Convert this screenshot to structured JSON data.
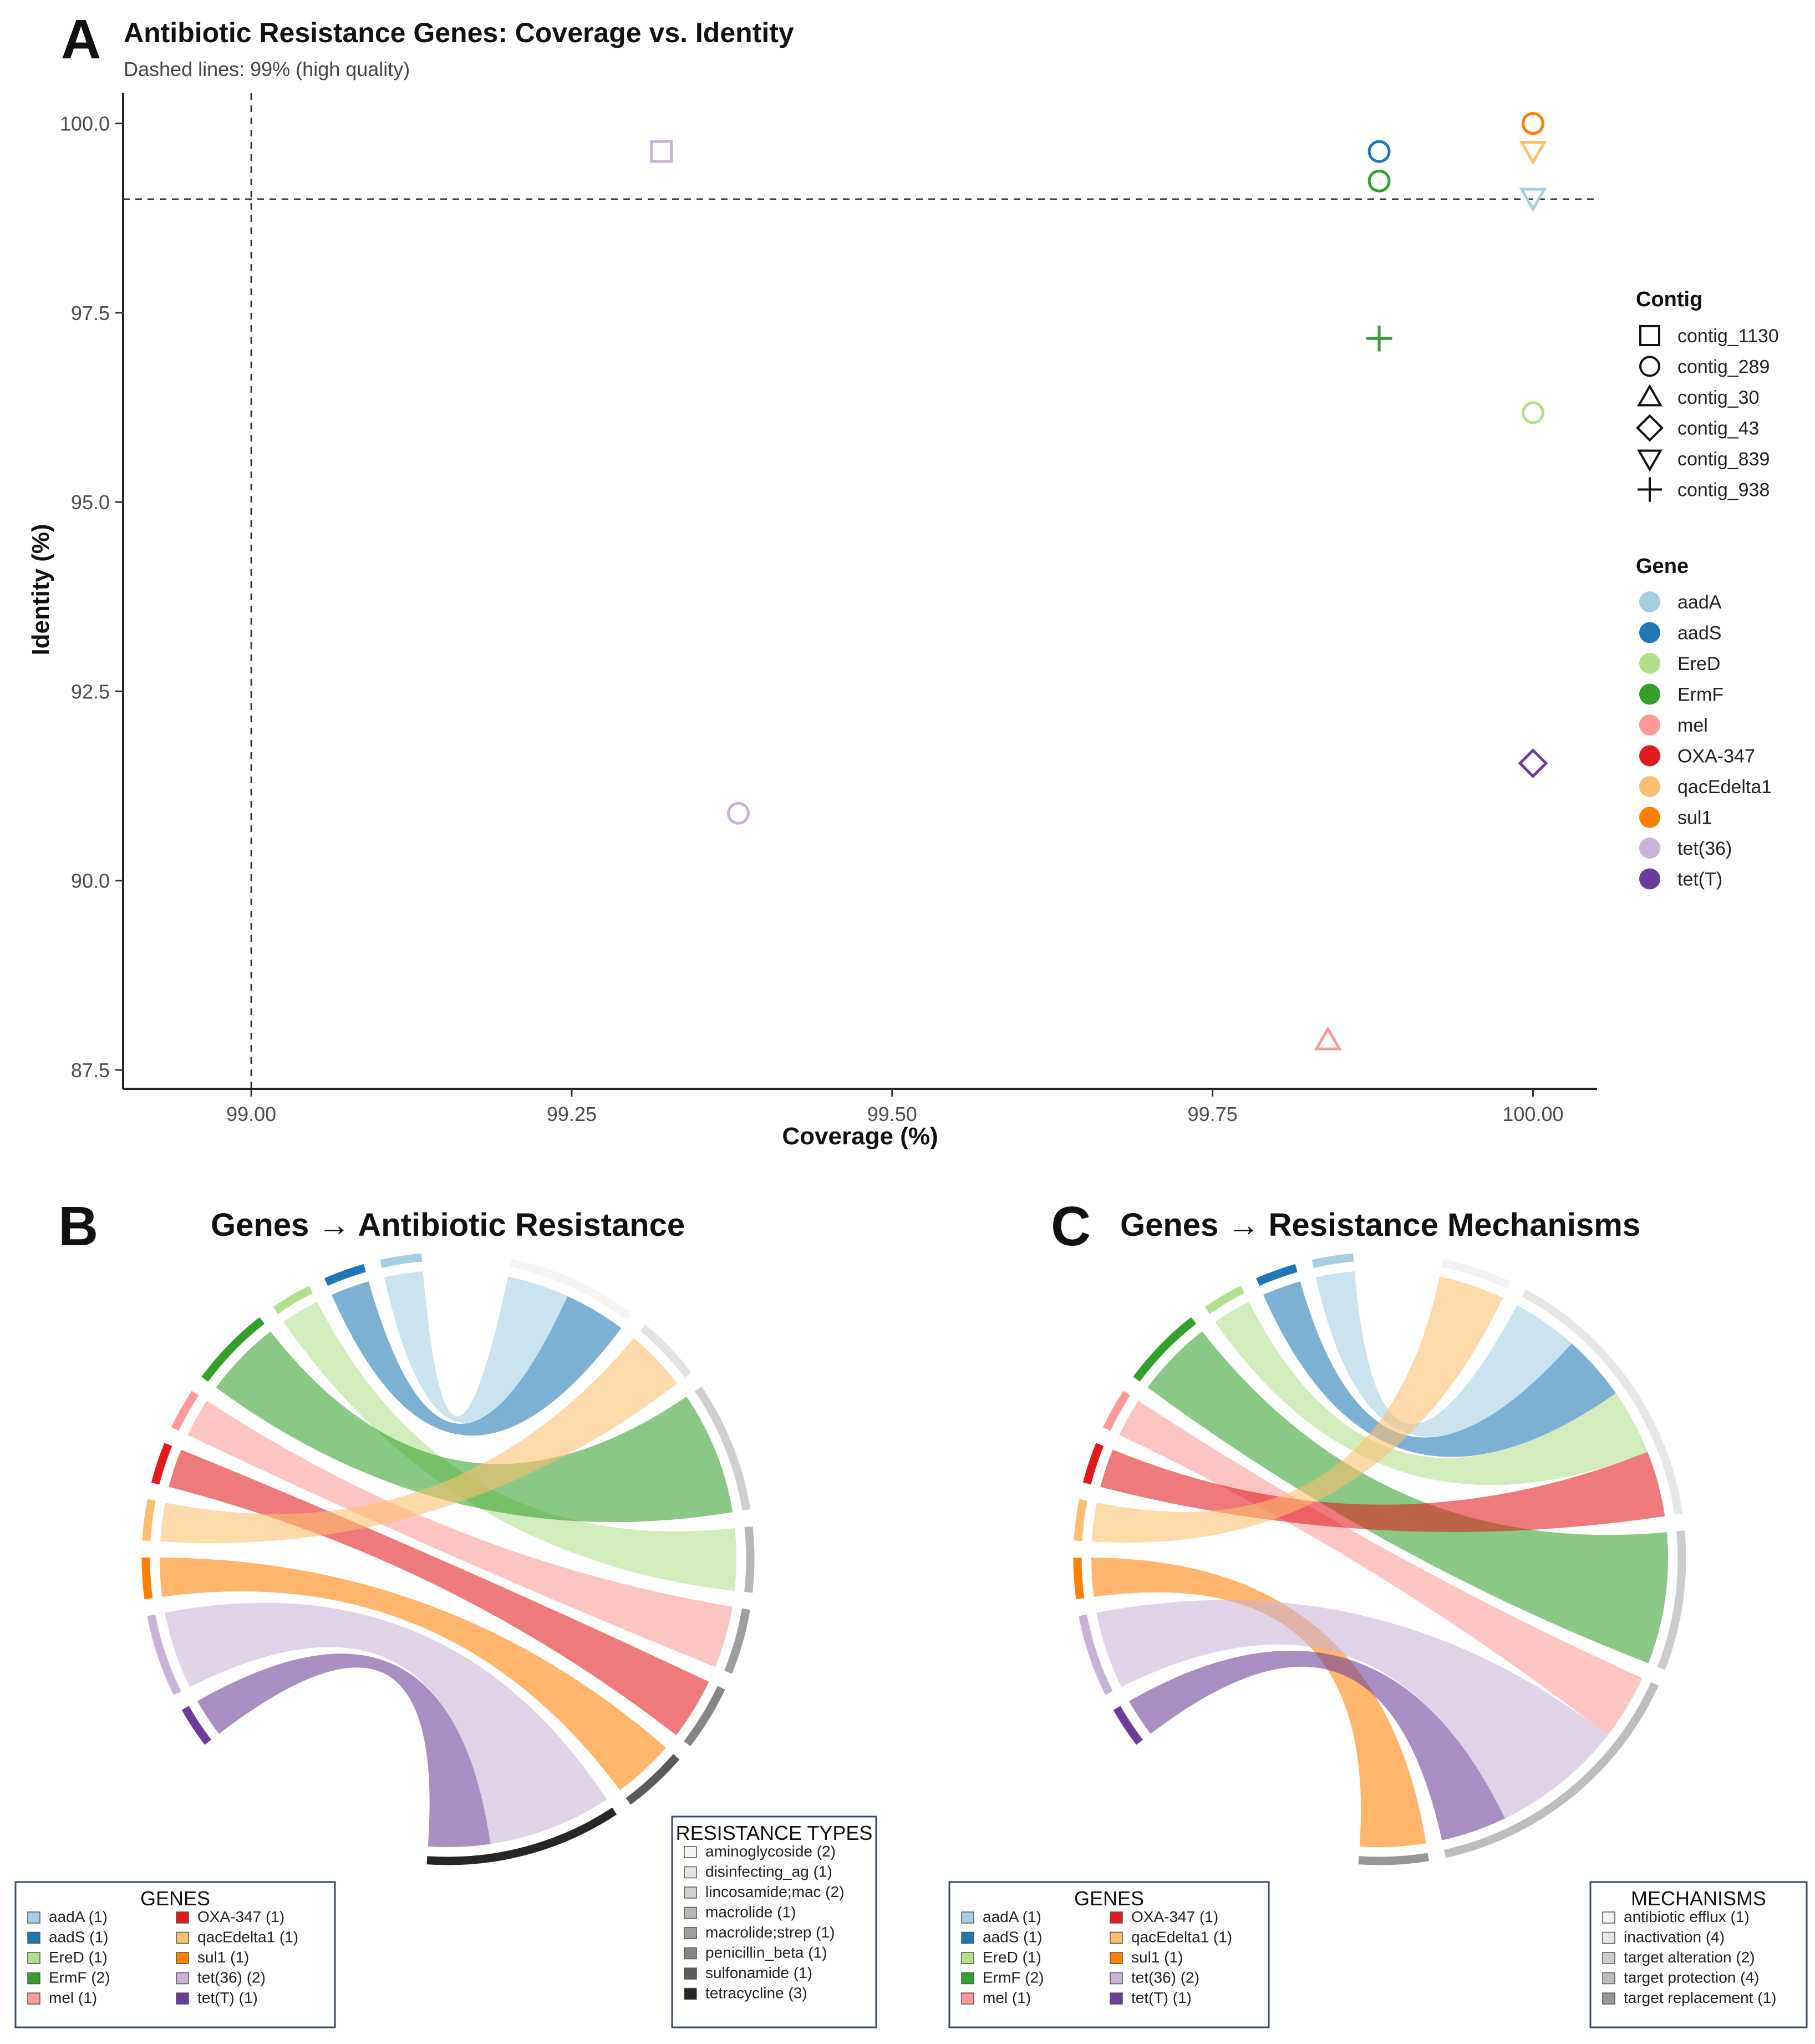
{
  "colors": {
    "aadA": "#a6cee3",
    "aadS": "#1f78b4",
    "EreD": "#b2df8a",
    "ErmF": "#33a02c",
    "mel": "#fb9a99",
    "OXA-347": "#e31a1c",
    "qacEdelta1": "#fdbf6f",
    "sul1": "#ff7f00",
    "tet(36)": "#cab2d6",
    "tet(T)": "#6a3d9a"
  },
  "panelA": {
    "letter": "A",
    "title": "Antibiotic Resistance Genes: Coverage vs. Identity",
    "subtitle": "Dashed lines: 99% (high quality)",
    "chart_data": {
      "type": "scatter",
      "title": "Antibiotic Resistance Genes: Coverage vs. Identity",
      "xlabel": "Coverage (%)",
      "ylabel": "Identity (%)",
      "xlim": [
        98.9,
        100.05
      ],
      "ylim": [
        87.25,
        100.4
      ],
      "xticks": [
        "99.00",
        "99.25",
        "99.50",
        "99.75",
        "100.00"
      ],
      "yticks": [
        "87.5",
        "90.0",
        "92.5",
        "95.0",
        "97.5",
        "100.0"
      ],
      "reference_lines": {
        "x": 99.0,
        "y": 99.0
      },
      "points": [
        {
          "gene": "tet(36)",
          "contig": "contig_1130",
          "x": 99.32,
          "y": 99.63
        },
        {
          "gene": "tet(36)",
          "contig": "contig_289",
          "x": 99.38,
          "y": 90.89
        },
        {
          "gene": "aadS",
          "contig": "contig_289",
          "x": 99.88,
          "y": 99.63
        },
        {
          "gene": "ErmF",
          "contig": "contig_289",
          "x": 99.88,
          "y": 99.24
        },
        {
          "gene": "ErmF",
          "contig": "contig_938",
          "x": 99.88,
          "y": 97.16
        },
        {
          "gene": "mel",
          "contig": "contig_30",
          "x": 99.84,
          "y": 87.89
        },
        {
          "gene": "OXA-347",
          "contig": "contig_289",
          "x": 100.0,
          "y": 100.0
        },
        {
          "gene": "sul1",
          "contig": "contig_289",
          "x": 100.0,
          "y": 100.0
        },
        {
          "gene": "qacEdelta1",
          "contig": "contig_839",
          "x": 100.0,
          "y": 99.64
        },
        {
          "gene": "aadA",
          "contig": "contig_839",
          "x": 100.0,
          "y": 99.02
        },
        {
          "gene": "EreD",
          "contig": "contig_289",
          "x": 100.0,
          "y": 96.18
        },
        {
          "gene": "tet(T)",
          "contig": "contig_43",
          "x": 100.0,
          "y": 91.55
        }
      ]
    },
    "legend_contig": {
      "title": "Contig",
      "items": [
        {
          "label": "contig_1130",
          "shape": "square"
        },
        {
          "label": "contig_289",
          "shape": "circle"
        },
        {
          "label": "contig_30",
          "shape": "triangle"
        },
        {
          "label": "contig_43",
          "shape": "diamond"
        },
        {
          "label": "contig_839",
          "shape": "triangle-down"
        },
        {
          "label": "contig_938",
          "shape": "plus"
        }
      ]
    },
    "legend_gene": {
      "title": "Gene",
      "items": [
        "aadA",
        "aadS",
        "EreD",
        "ErmF",
        "mel",
        "OXA-347",
        "qacEdelta1",
        "sul1",
        "tet(36)",
        "tet(T)"
      ]
    }
  },
  "panelB": {
    "letter": "B",
    "title": "Genes → Antibiotic Resistance",
    "chart_data": {
      "type": "chord",
      "genes": [
        {
          "name": "aadA",
          "count": 1
        },
        {
          "name": "aadS",
          "count": 1
        },
        {
          "name": "EreD",
          "count": 1
        },
        {
          "name": "ErmF",
          "count": 2
        },
        {
          "name": "mel",
          "count": 1
        },
        {
          "name": "OXA-347",
          "count": 1
        },
        {
          "name": "qacEdelta1",
          "count": 1
        },
        {
          "name": "sul1",
          "count": 1
        },
        {
          "name": "tet(36)",
          "count": 2
        },
        {
          "name": "tet(T)",
          "count": 1
        }
      ],
      "categories": [
        {
          "name": "aminoglycoside",
          "count": 2,
          "color": "#f4f4f4"
        },
        {
          "name": "disinfecting_ag",
          "count": 1,
          "color": "#e3e3e3"
        },
        {
          "name": "lincosamide;mac",
          "count": 2,
          "color": "#cfcfcf"
        },
        {
          "name": "macrolide",
          "count": 1,
          "color": "#b7b7b7"
        },
        {
          "name": "macrolide;strep",
          "count": 1,
          "color": "#9e9e9e"
        },
        {
          "name": "penicillin_beta",
          "count": 1,
          "color": "#858585"
        },
        {
          "name": "sulfonamide",
          "count": 1,
          "color": "#5a5a5a"
        },
        {
          "name": "tetracycline",
          "count": 3,
          "color": "#262626"
        }
      ],
      "links": [
        {
          "gene": "aadA",
          "target": "aminoglycoside"
        },
        {
          "gene": "aadS",
          "target": "aminoglycoside"
        },
        {
          "gene": "EreD",
          "target": "macrolide"
        },
        {
          "gene": "ErmF",
          "target": "lincosamide;mac"
        },
        {
          "gene": "ErmF",
          "target": "lincosamide;mac"
        },
        {
          "gene": "mel",
          "target": "macrolide;strep"
        },
        {
          "gene": "OXA-347",
          "target": "penicillin_beta"
        },
        {
          "gene": "qacEdelta1",
          "target": "disinfecting_ag"
        },
        {
          "gene": "sul1",
          "target": "sulfonamide"
        },
        {
          "gene": "tet(36)",
          "target": "tetracycline"
        },
        {
          "gene": "tet(36)",
          "target": "tetracycline"
        },
        {
          "gene": "tet(T)",
          "target": "tetracycline"
        }
      ]
    },
    "genes_legend": {
      "title": "GENES",
      "items": [
        "aadA (1)",
        "aadS (1)",
        "EreD (1)",
        "ErmF (2)",
        "mel (1)",
        "OXA-347 (1)",
        "qacEdelta1 (1)",
        "sul1 (1)",
        "tet(36) (2)",
        "tet(T) (1)"
      ]
    },
    "types_legend": {
      "title": "RESISTANCE TYPES",
      "items": [
        "aminoglycoside (2)",
        "disinfecting_ag (1)",
        "lincosamide;mac (2)",
        "macrolide (1)",
        "macrolide;strep (1)",
        "penicillin_beta (1)",
        "sulfonamide (1)",
        "tetracycline (3)"
      ]
    }
  },
  "panelC": {
    "letter": "C",
    "title": "Genes → Resistance Mechanisms",
    "chart_data": {
      "type": "chord",
      "genes": [
        {
          "name": "aadA",
          "count": 1
        },
        {
          "name": "aadS",
          "count": 1
        },
        {
          "name": "EreD",
          "count": 1
        },
        {
          "name": "ErmF",
          "count": 2
        },
        {
          "name": "mel",
          "count": 1
        },
        {
          "name": "OXA-347",
          "count": 1
        },
        {
          "name": "qacEdelta1",
          "count": 1
        },
        {
          "name": "sul1",
          "count": 1
        },
        {
          "name": "tet(36)",
          "count": 2
        },
        {
          "name": "tet(T)",
          "count": 1
        }
      ],
      "categories": [
        {
          "name": "antibiotic efflux",
          "count": 1,
          "color": "#f2f2f2"
        },
        {
          "name": "inactivation",
          "count": 4,
          "color": "#e6e6e6"
        },
        {
          "name": "target alteration",
          "count": 2,
          "color": "#cccccc"
        },
        {
          "name": "target protection",
          "count": 4,
          "color": "#bdbdbd"
        },
        {
          "name": "target replacement",
          "count": 1,
          "color": "#969696"
        }
      ],
      "links": [
        {
          "gene": "aadA",
          "target": "inactivation"
        },
        {
          "gene": "aadS",
          "target": "inactivation"
        },
        {
          "gene": "EreD",
          "target": "inactivation"
        },
        {
          "gene": "ErmF",
          "target": "target alteration"
        },
        {
          "gene": "ErmF",
          "target": "target alteration"
        },
        {
          "gene": "mel",
          "target": "target protection"
        },
        {
          "gene": "OXA-347",
          "target": "inactivation"
        },
        {
          "gene": "qacEdelta1",
          "target": "antibiotic efflux"
        },
        {
          "gene": "sul1",
          "target": "target replacement"
        },
        {
          "gene": "tet(36)",
          "target": "target protection"
        },
        {
          "gene": "tet(36)",
          "target": "target protection"
        },
        {
          "gene": "tet(T)",
          "target": "target protection"
        }
      ]
    },
    "genes_legend": {
      "title": "GENES",
      "items": [
        "aadA (1)",
        "aadS (1)",
        "EreD (1)",
        "ErmF (2)",
        "mel (1)",
        "OXA-347 (1)",
        "qacEdelta1 (1)",
        "sul1 (1)",
        "tet(36) (2)",
        "tet(T) (1)"
      ]
    },
    "types_legend": {
      "title": "MECHANISMS",
      "items": [
        "antibiotic efflux (1)",
        "inactivation (4)",
        "target alteration (2)",
        "target protection (4)",
        "target replacement (1)"
      ]
    }
  }
}
